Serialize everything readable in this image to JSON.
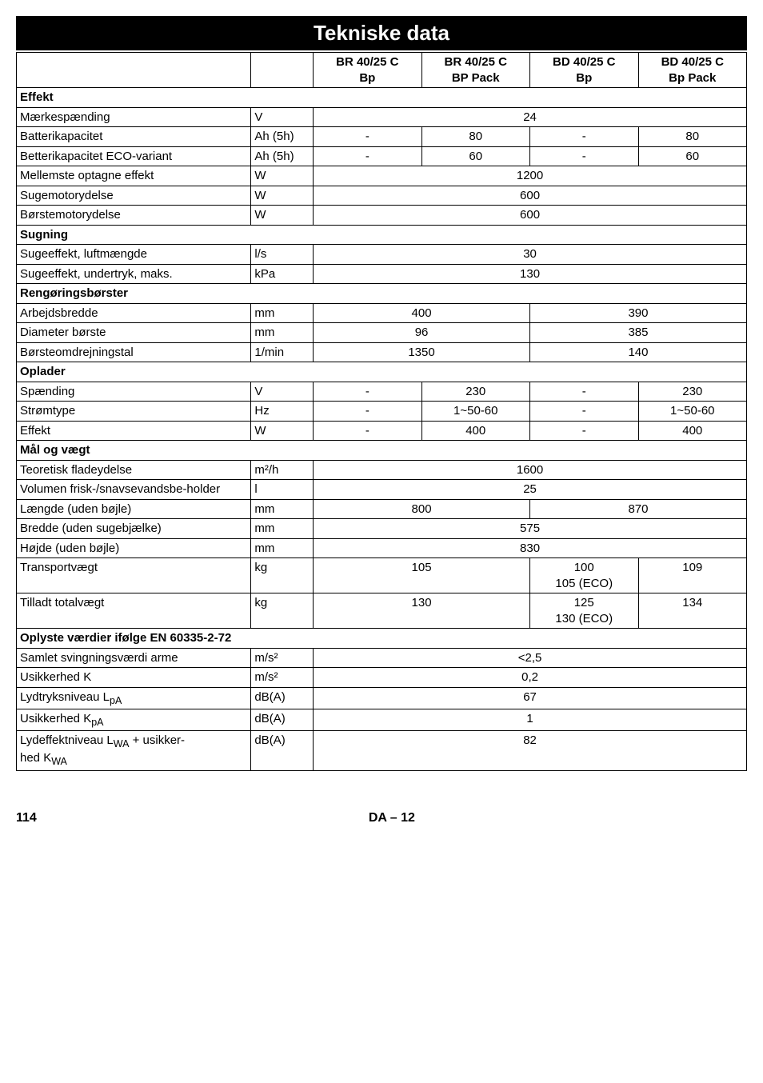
{
  "title": "Tekniske data",
  "headers": {
    "c1": "BR 40/25 C Bp",
    "c2": "BR 40/25 C BP Pack",
    "c3": "BD 40/25 C Bp",
    "c4": "BD 40/25 C Bp Pack"
  },
  "sections": {
    "effekt": "Effekt",
    "sugning": "Sugning",
    "rengoring": "Rengøringsbørster",
    "oplader": "Oplader",
    "mal": "Mål og vægt",
    "oplyste": "Oplyste værdier ifølge EN 60335-2-72"
  },
  "rows": {
    "maerke": {
      "label": "Mærkespænding",
      "unit": "V",
      "val": "24"
    },
    "battkap": {
      "label": "Batterikapacitet",
      "unit": "Ah (5h)",
      "v1": "-",
      "v2": "80",
      "v3": "-",
      "v4": "80"
    },
    "bettkap": {
      "label": "Betterikapacitet ECO-variant",
      "unit": "Ah (5h)",
      "v1": "-",
      "v2": "60",
      "v3": "-",
      "v4": "60"
    },
    "mellem": {
      "label": "Mellemste optagne effekt",
      "unit": "W",
      "val": "1200"
    },
    "sugemotor": {
      "label": "Sugemotorydelse",
      "unit": "W",
      "val": "600"
    },
    "borstemotor": {
      "label": "Børstemotorydelse",
      "unit": "W",
      "val": "600"
    },
    "sugeluft": {
      "label": "Sugeeffekt, luftmængde",
      "unit": "l/s",
      "val": "30"
    },
    "sugeunder": {
      "label": "Sugeeffekt, undertryk, maks.",
      "unit": "kPa",
      "val": "130"
    },
    "arbejds": {
      "label": "Arbejdsbredde",
      "unit": "mm",
      "v12": "400",
      "v34": "390"
    },
    "diameter": {
      "label": "Diameter børste",
      "unit": "mm",
      "v12": "96",
      "v34": "385"
    },
    "borsteom": {
      "label": "Børsteomdrejningstal",
      "unit": "1/min",
      "v12": "1350",
      "v34": "140"
    },
    "spaend": {
      "label": "Spænding",
      "unit": "V",
      "v1": "-",
      "v2": "230",
      "v3": "-",
      "v4": "230"
    },
    "stromtype": {
      "label": "Strømtype",
      "unit": "Hz",
      "v1": "-",
      "v2": "1~50-60",
      "v3": "-",
      "v4": "1~50-60"
    },
    "effekt2": {
      "label": "Effekt",
      "unit": "W",
      "v1": "-",
      "v2": "400",
      "v3": "-",
      "v4": "400"
    },
    "teoretisk": {
      "label": "Teoretisk fladeydelse",
      "unit": "m²/h",
      "val": "1600"
    },
    "volumen": {
      "label": "Volumen frisk-/snavsevandsbe-holder",
      "unit": "l",
      "val": "25"
    },
    "laengde": {
      "label": "Længde (uden bøjle)",
      "unit": "mm",
      "v12": "800",
      "v34": "870"
    },
    "bredde": {
      "label": "Bredde (uden sugebjælke)",
      "unit": "mm",
      "val": "575"
    },
    "hojde": {
      "label": "Højde (uden bøjle)",
      "unit": "mm",
      "val": "830"
    },
    "transport": {
      "label": "Transportvægt",
      "unit": "kg",
      "v12": "105",
      "v3a": "100",
      "v3b": "105 (ECO)",
      "v4": "109"
    },
    "tilladt": {
      "label": "Tilladt totalvægt",
      "unit": "kg",
      "v12": "130",
      "v3a": "125",
      "v3b": "130 (ECO)",
      "v4": "134"
    },
    "samlet": {
      "label": "Samlet svingningsværdi arme",
      "unit": "m/s²",
      "val": "<2,5"
    },
    "usikk": {
      "label": "Usikkerhed K",
      "unit": "m/s²",
      "val": "0,2"
    },
    "lydtryk": {
      "label": "Lydtryksniveau LpA",
      "unit": "dB(A)",
      "val": "67"
    },
    "usikkpa": {
      "label": "Usikkerhed KpA",
      "unit": "dB(A)",
      "val": "1"
    },
    "lydeffekt": {
      "label": "Lydeffektniveau LWA + usikker-hed KWA",
      "unit": "dB(A)",
      "val": "82"
    }
  },
  "footer": {
    "page": "114",
    "code": "DA – 12"
  }
}
